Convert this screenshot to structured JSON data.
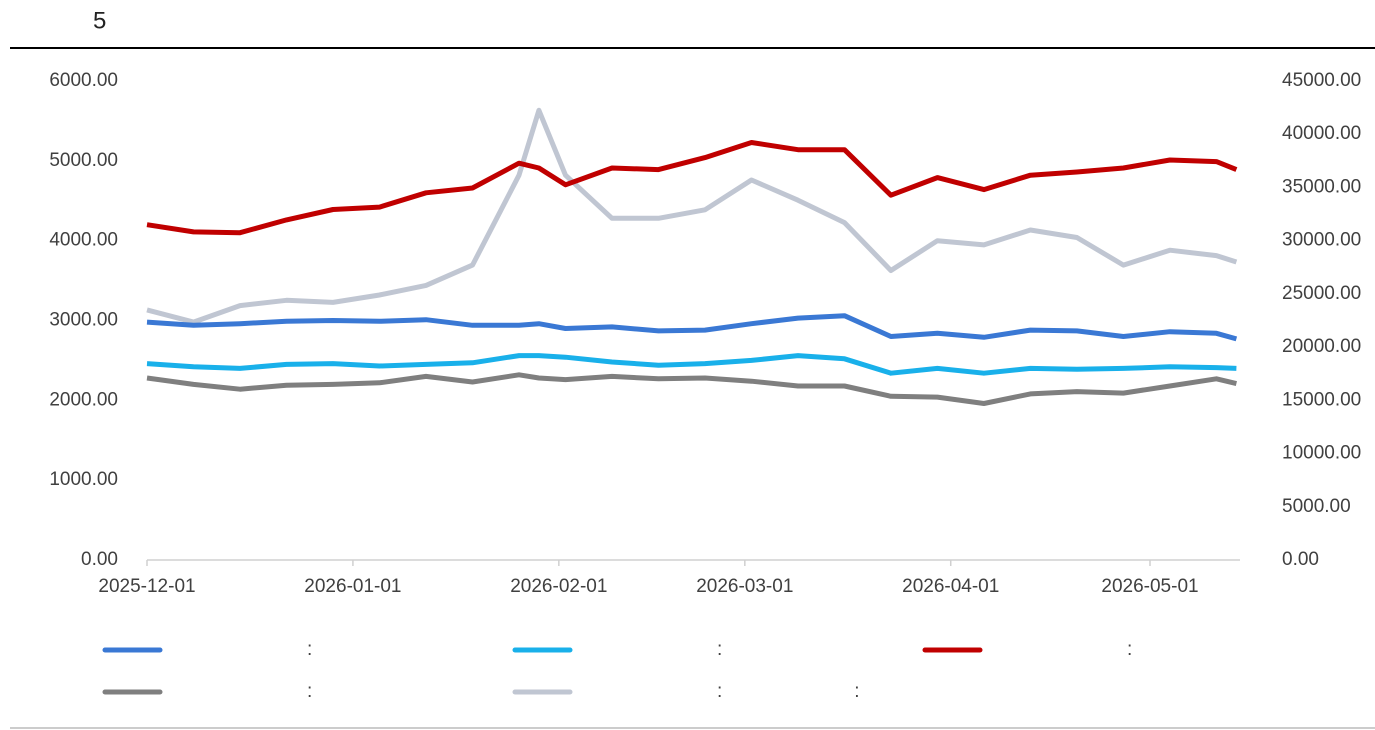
{
  "chart_data": {
    "type": "line",
    "title": "5",
    "x": [
      "2025-12-01",
      "2025-12-08",
      "2025-12-15",
      "2025-12-22",
      "2025-12-29",
      "2026-01-05",
      "2026-01-12",
      "2026-01-19",
      "2026-01-26",
      "2026-01-29",
      "2026-02-02",
      "2026-02-09",
      "2026-02-16",
      "2026-02-23",
      "2026-03-02",
      "2026-03-09",
      "2026-03-16",
      "2026-03-23",
      "2026-03-30",
      "2026-04-06",
      "2026-04-13",
      "2026-04-20",
      "2026-04-27",
      "2026-05-04",
      "2026-05-11",
      "2026-05-14"
    ],
    "xticks": [
      "2025-12-01",
      "2026-01-01",
      "2026-02-01",
      "2026-03-01",
      "2026-04-01",
      "2026-05-01"
    ],
    "ylim": [
      0,
      6000
    ],
    "yticks": [
      {
        "value": 0,
        "label": "0.00"
      },
      {
        "value": 1000,
        "label": "1000.00"
      },
      {
        "value": 2000,
        "label": "2000.00"
      },
      {
        "value": 3000,
        "label": "3000.00"
      },
      {
        "value": 4000,
        "label": "4000.00"
      },
      {
        "value": 5000,
        "label": "5000.00"
      },
      {
        "value": 6000,
        "label": "6000.00"
      }
    ],
    "y2lim": [
      0,
      45000
    ],
    "y2ticks": [
      {
        "value": 0,
        "label": "0.00"
      },
      {
        "value": 5000,
        "label": "5000.00"
      },
      {
        "value": 10000,
        "label": "10000.00"
      },
      {
        "value": 15000,
        "label": "15000.00"
      },
      {
        "value": 20000,
        "label": "20000.00"
      },
      {
        "value": 25000,
        "label": "25000.00"
      },
      {
        "value": 30000,
        "label": "30000.00"
      },
      {
        "value": 35000,
        "label": "35000.00"
      },
      {
        "value": 40000,
        "label": "40000.00"
      },
      {
        "value": 45000,
        "label": "45000.00"
      }
    ],
    "series": [
      {
        "name": ":",
        "color": "#3a78d4",
        "values": [
          2980,
          2940,
          2960,
          2990,
          3000,
          2990,
          3010,
          2940,
          2940,
          2960,
          2900,
          2920,
          2870,
          2880,
          2960,
          3030,
          3060,
          2800,
          2840,
          2790,
          2880,
          2870,
          2800,
          2860,
          2840,
          2770
        ]
      },
      {
        "name": ":",
        "color": "#19b0ea",
        "values": [
          2460,
          2420,
          2400,
          2450,
          2460,
          2430,
          2450,
          2470,
          2560,
          2560,
          2540,
          2480,
          2440,
          2460,
          2500,
          2560,
          2520,
          2340,
          2400,
          2340,
          2400,
          2390,
          2400,
          2420,
          2410,
          2400
        ]
      },
      {
        "name": ":",
        "color": "#c00000",
        "values": [
          4200,
          4110,
          4100,
          4260,
          4390,
          4420,
          4600,
          4660,
          4970,
          4910,
          4700,
          4910,
          4890,
          5040,
          5230,
          5140,
          5140,
          4570,
          4790,
          4640,
          4820,
          4860,
          4910,
          5010,
          4990,
          4890
        ]
      },
      {
        "name": ":",
        "color": "#7f7f7f",
        "values": [
          2280,
          2200,
          2140,
          2190,
          2200,
          2220,
          2300,
          2230,
          2320,
          2280,
          2260,
          2300,
          2270,
          2280,
          2240,
          2180,
          2180,
          2050,
          2040,
          1960,
          2080,
          2110,
          2090,
          2180,
          2270,
          2210
        ]
      },
      {
        "name": ":                         :",
        "color": "#c0c6d2",
        "axis": "y2",
        "values": [
          23500,
          22350,
          23900,
          24400,
          24200,
          24900,
          25800,
          27700,
          36150,
          42250,
          36150,
          32100,
          32100,
          32900,
          35700,
          33800,
          31700,
          27200,
          30000,
          29600,
          31000,
          30300,
          27700,
          29100,
          28600,
          28000
        ]
      }
    ]
  }
}
